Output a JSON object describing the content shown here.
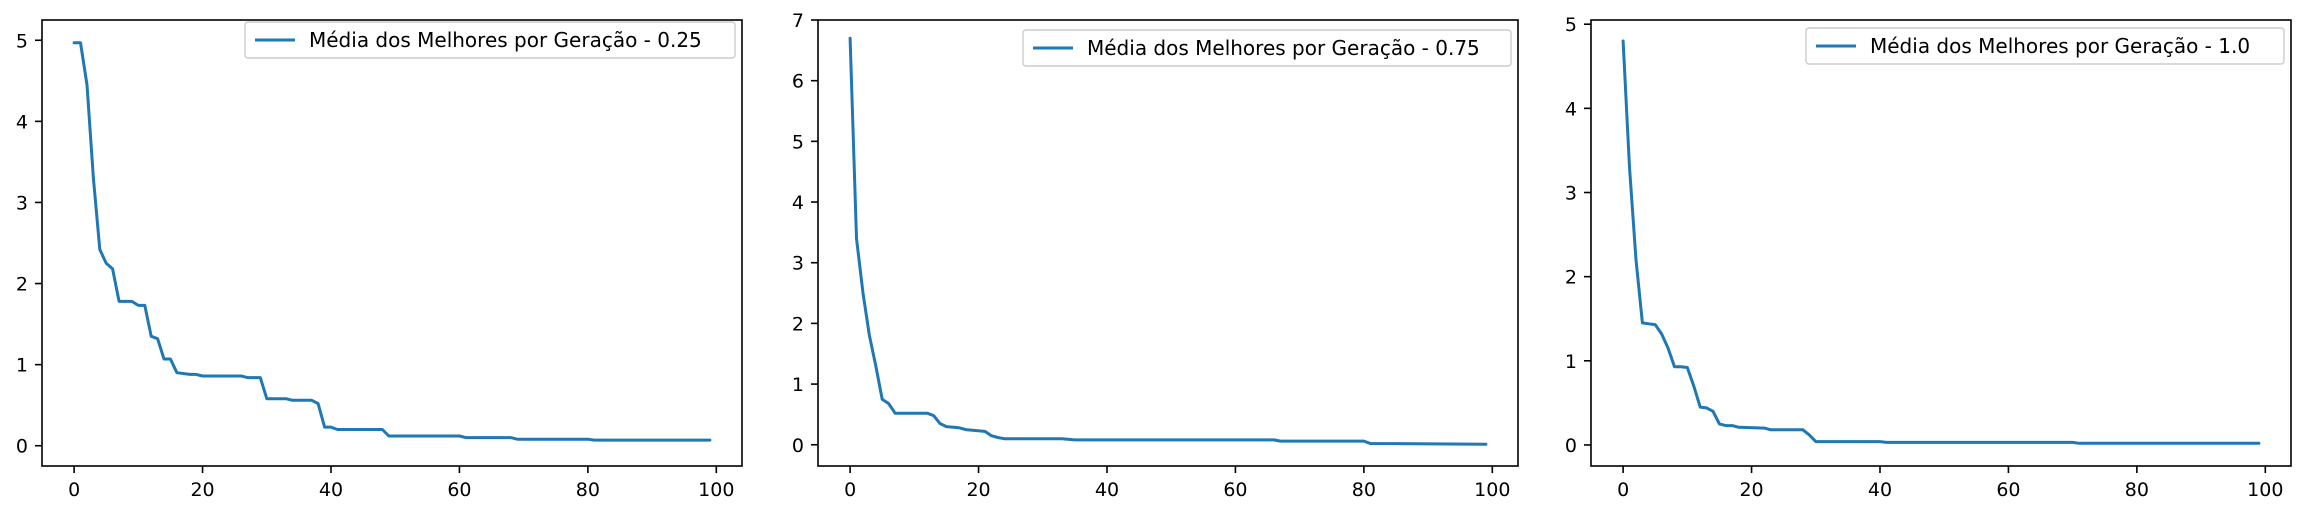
{
  "chart_data": [
    {
      "type": "line",
      "title": "",
      "xlabel": "",
      "ylabel": "",
      "xlim": [
        -5,
        104
      ],
      "ylim": [
        -0.25,
        5.25
      ],
      "xticks": [
        0,
        20,
        40,
        60,
        80,
        100
      ],
      "yticks": [
        0,
        1,
        2,
        3,
        4,
        5
      ],
      "xtick_labels": [
        "0",
        "20",
        "40",
        "60",
        "80",
        "100"
      ],
      "ytick_labels": [
        "0",
        "1",
        "2",
        "3",
        "4",
        "5"
      ],
      "legend_position": "top-right",
      "grid": false,
      "series": [
        {
          "name": "Média dos Melhores por Geração - 0.25",
          "color": "#1f77b4",
          "points": [
            [
              0,
              4.97
            ],
            [
              1,
              4.97
            ],
            [
              2,
              4.45
            ],
            [
              3,
              3.3
            ],
            [
              4,
              2.42
            ],
            [
              5,
              2.25
            ],
            [
              6,
              2.18
            ],
            [
              7,
              1.78
            ],
            [
              9,
              1.78
            ],
            [
              10,
              1.73
            ],
            [
              11,
              1.73
            ],
            [
              12,
              1.35
            ],
            [
              13,
              1.32
            ],
            [
              14,
              1.07
            ],
            [
              15,
              1.07
            ],
            [
              16,
              0.9
            ],
            [
              18,
              0.88
            ],
            [
              19,
              0.88
            ],
            [
              20,
              0.86
            ],
            [
              26,
              0.86
            ],
            [
              27,
              0.84
            ],
            [
              29,
              0.84
            ],
            [
              30,
              0.58
            ],
            [
              33,
              0.58
            ],
            [
              34,
              0.56
            ],
            [
              37,
              0.56
            ],
            [
              38,
              0.52
            ],
            [
              39,
              0.23
            ],
            [
              40,
              0.23
            ],
            [
              41,
              0.2
            ],
            [
              48,
              0.2
            ],
            [
              49,
              0.12
            ],
            [
              60,
              0.12
            ],
            [
              61,
              0.1
            ],
            [
              68,
              0.1
            ],
            [
              69,
              0.08
            ],
            [
              80,
              0.08
            ],
            [
              81,
              0.07
            ],
            [
              99,
              0.07
            ]
          ]
        }
      ]
    },
    {
      "type": "line",
      "title": "",
      "xlabel": "",
      "ylabel": "",
      "xlim": [
        -5,
        104
      ],
      "ylim": [
        -0.35,
        7.0
      ],
      "xticks": [
        0,
        20,
        40,
        60,
        80,
        100
      ],
      "yticks": [
        0,
        1,
        2,
        3,
        4,
        5,
        6,
        7
      ],
      "xtick_labels": [
        "0",
        "20",
        "40",
        "60",
        "80",
        "100"
      ],
      "ytick_labels": [
        "0",
        "1",
        "2",
        "3",
        "4",
        "5",
        "6",
        "7"
      ],
      "legend_position": "top-right",
      "grid": false,
      "series": [
        {
          "name": "Média dos Melhores por Geração - 0.75",
          "color": "#1f77b4",
          "points": [
            [
              0,
              6.7
            ],
            [
              1,
              3.4
            ],
            [
              2,
              2.5
            ],
            [
              3,
              1.8
            ],
            [
              4,
              1.3
            ],
            [
              5,
              0.75
            ],
            [
              6,
              0.68
            ],
            [
              7,
              0.52
            ],
            [
              12,
              0.52
            ],
            [
              13,
              0.48
            ],
            [
              14,
              0.35
            ],
            [
              15,
              0.3
            ],
            [
              17,
              0.28
            ],
            [
              18,
              0.25
            ],
            [
              21,
              0.22
            ],
            [
              22,
              0.15
            ],
            [
              23,
              0.12
            ],
            [
              24,
              0.1
            ],
            [
              33,
              0.1
            ],
            [
              35,
              0.08
            ],
            [
              66,
              0.08
            ],
            [
              67,
              0.06
            ],
            [
              80,
              0.06
            ],
            [
              81,
              0.02
            ],
            [
              99,
              0.01
            ]
          ]
        }
      ]
    },
    {
      "type": "line",
      "title": "",
      "xlabel": "",
      "ylabel": "",
      "xlim": [
        -5,
        104
      ],
      "ylim": [
        -0.25,
        5.05
      ],
      "xticks": [
        0,
        20,
        40,
        60,
        80,
        100
      ],
      "yticks": [
        0,
        1,
        2,
        3,
        4,
        5
      ],
      "xtick_labels": [
        "0",
        "20",
        "40",
        "60",
        "80",
        "100"
      ],
      "ytick_labels": [
        "0",
        "1",
        "2",
        "3",
        "4",
        "5"
      ],
      "legend_position": "top-right",
      "grid": false,
      "series": [
        {
          "name": "Média dos Melhores por Geração - 1.0",
          "color": "#1f77b4",
          "points": [
            [
              0,
              4.8
            ],
            [
              1,
              3.3
            ],
            [
              2,
              2.2
            ],
            [
              3,
              1.45
            ],
            [
              4,
              1.44
            ],
            [
              5,
              1.43
            ],
            [
              6,
              1.32
            ],
            [
              7,
              1.15
            ],
            [
              8,
              0.93
            ],
            [
              9,
              0.93
            ],
            [
              10,
              0.92
            ],
            [
              11,
              0.7
            ],
            [
              12,
              0.45
            ],
            [
              13,
              0.44
            ],
            [
              14,
              0.4
            ],
            [
              15,
              0.25
            ],
            [
              16,
              0.23
            ],
            [
              17,
              0.23
            ],
            [
              18,
              0.21
            ],
            [
              22,
              0.2
            ],
            [
              23,
              0.18
            ],
            [
              28,
              0.18
            ],
            [
              29,
              0.12
            ],
            [
              30,
              0.04
            ],
            [
              40,
              0.04
            ],
            [
              41,
              0.03
            ],
            [
              70,
              0.03
            ],
            [
              71,
              0.02
            ],
            [
              99,
              0.02
            ]
          ]
        }
      ]
    }
  ]
}
